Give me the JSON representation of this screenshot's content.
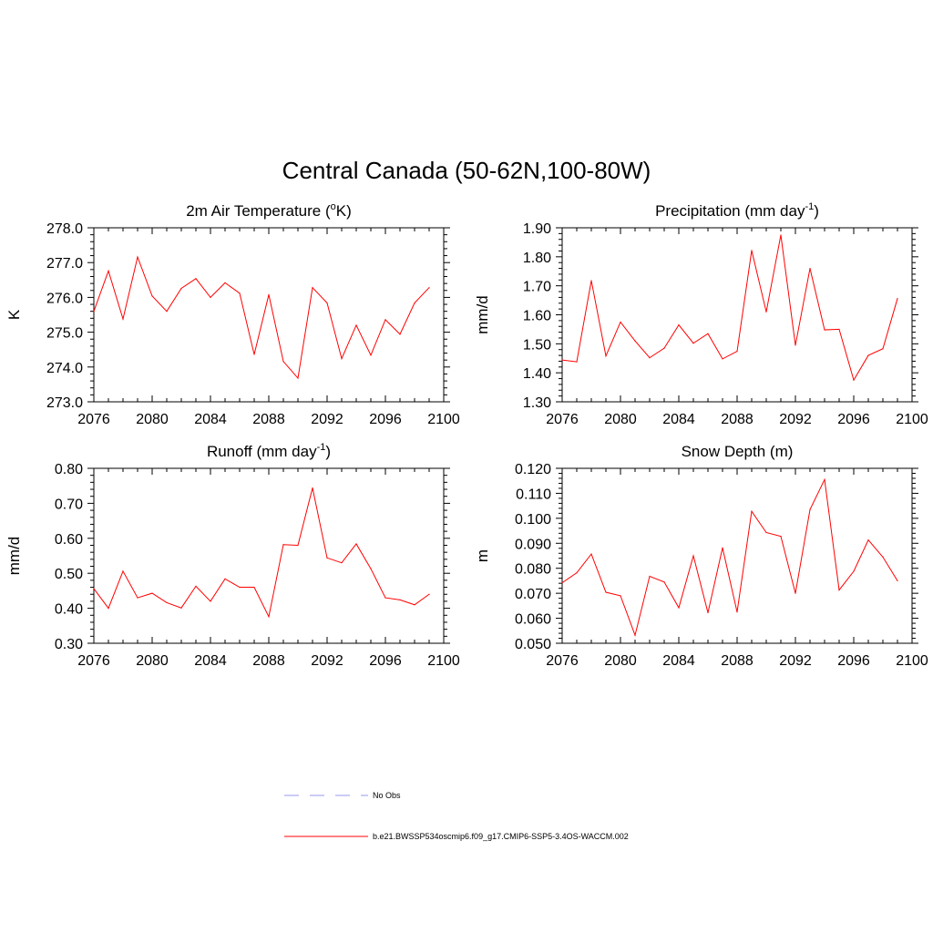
{
  "figure": {
    "title": "Central Canada (50-62N,100-80W)"
  },
  "legend": {
    "entries": [
      {
        "label": "No Obs",
        "color": "#9999ee",
        "style": "dashed"
      },
      {
        "label": "b.e21.BWSSP534oscmip6.f09_g17.CMIP6-SSP5-3.4OS-WACCM.002",
        "color": "#ff0000",
        "style": "solid"
      }
    ]
  },
  "colors": {
    "series": "#ff0000",
    "obs": "#9999ee",
    "axis": "#000000"
  },
  "chart_data": [
    {
      "type": "line",
      "id": "temp",
      "title": "2m Air Temperature (",
      "title_sup": "o",
      "title_after": "K)",
      "ylabel": "K",
      "xlabel": "",
      "xlim": [
        2076,
        2100
      ],
      "ylim": [
        273.0,
        278.0
      ],
      "yticks": [
        273.0,
        274.0,
        275.0,
        276.0,
        277.0,
        278.0
      ],
      "ytick_labels": [
        "273.0",
        "274.0",
        "275.0",
        "276.0",
        "277.0",
        "278.0"
      ],
      "xticks": [
        2076,
        2080,
        2084,
        2088,
        2092,
        2096,
        2100
      ],
      "xtick_labels": [
        "2076",
        "2080",
        "2084",
        "2088",
        "2092",
        "2096",
        "2100"
      ],
      "x": [
        2076,
        2077,
        2078,
        2079,
        2080,
        2081,
        2082,
        2083,
        2084,
        2085,
        2086,
        2087,
        2088,
        2089,
        2090,
        2091,
        2092,
        2093,
        2094,
        2095,
        2096,
        2097,
        2098,
        2099
      ],
      "series": [
        {
          "name": "b.e21.BWSSP534oscmip6.f09_g17.CMIP6-SSP5-3.4OS-WACCM.002",
          "values": [
            275.6,
            276.76,
            275.38,
            277.16,
            276.04,
            275.6,
            276.26,
            276.54,
            276.0,
            276.42,
            276.12,
            274.36,
            276.08,
            274.16,
            273.68,
            276.28,
            275.84,
            274.24,
            275.2,
            274.34,
            275.36,
            274.94,
            275.84,
            276.28
          ]
        }
      ]
    },
    {
      "type": "line",
      "id": "precip",
      "title": "Precipitation (mm day",
      "title_sup": "-1",
      "title_after": ")",
      "ylabel": "mm/d",
      "xlabel": "",
      "xlim": [
        2076,
        2100
      ],
      "ylim": [
        1.3,
        1.9
      ],
      "yticks": [
        1.3,
        1.4,
        1.5,
        1.6,
        1.7,
        1.8,
        1.9
      ],
      "ytick_labels": [
        "1.30",
        "1.40",
        "1.50",
        "1.60",
        "1.70",
        "1.80",
        "1.90"
      ],
      "xticks": [
        2076,
        2080,
        2084,
        2088,
        2092,
        2096,
        2100
      ],
      "xtick_labels": [
        "2076",
        "2080",
        "2084",
        "2088",
        "2092",
        "2096",
        "2100"
      ],
      "x": [
        2076,
        2077,
        2078,
        2079,
        2080,
        2081,
        2082,
        2083,
        2084,
        2085,
        2086,
        2087,
        2088,
        2089,
        2090,
        2091,
        2092,
        2093,
        2094,
        2095,
        2096,
        2097,
        2098,
        2099
      ],
      "series": [
        {
          "name": "b.e21.BWSSP534oscmip6.f09_g17.CMIP6-SSP5-3.4OS-WACCM.002",
          "values": [
            1.444,
            1.438,
            1.718,
            1.458,
            1.575,
            1.51,
            1.452,
            1.485,
            1.565,
            1.502,
            1.535,
            1.448,
            1.474,
            1.822,
            1.61,
            1.875,
            1.495,
            1.76,
            1.548,
            1.55,
            1.375,
            1.46,
            1.483,
            1.656
          ]
        }
      ]
    },
    {
      "type": "line",
      "id": "runoff",
      "title": "Runoff (mm day",
      "title_sup": "-1",
      "title_after": ")",
      "ylabel": "mm/d",
      "xlabel": "",
      "xlim": [
        2076,
        2100
      ],
      "ylim": [
        0.3,
        0.8
      ],
      "yticks": [
        0.3,
        0.4,
        0.5,
        0.6,
        0.7,
        0.8
      ],
      "ytick_labels": [
        "0.30",
        "0.40",
        "0.50",
        "0.60",
        "0.70",
        "0.80"
      ],
      "xticks": [
        2076,
        2080,
        2084,
        2088,
        2092,
        2096,
        2100
      ],
      "xtick_labels": [
        "2076",
        "2080",
        "2084",
        "2088",
        "2092",
        "2096",
        "2100"
      ],
      "x": [
        2076,
        2077,
        2078,
        2079,
        2080,
        2081,
        2082,
        2083,
        2084,
        2085,
        2086,
        2087,
        2088,
        2089,
        2090,
        2091,
        2092,
        2093,
        2094,
        2095,
        2096,
        2097,
        2098,
        2099
      ],
      "series": [
        {
          "name": "b.e21.BWSSP534oscmip6.f09_g17.CMIP6-SSP5-3.4OS-WACCM.002",
          "values": [
            0.456,
            0.4,
            0.506,
            0.43,
            0.443,
            0.416,
            0.401,
            0.463,
            0.42,
            0.484,
            0.46,
            0.46,
            0.376,
            0.582,
            0.58,
            0.744,
            0.544,
            0.53,
            0.584,
            0.513,
            0.43,
            0.424,
            0.41,
            0.44
          ]
        }
      ]
    },
    {
      "type": "line",
      "id": "snow",
      "title": "Snow Depth (m)",
      "title_sup": "",
      "title_after": "",
      "ylabel": "m",
      "xlabel": "",
      "xlim": [
        2076,
        2100
      ],
      "ylim": [
        0.05,
        0.12
      ],
      "yticks": [
        0.05,
        0.06,
        0.07,
        0.08,
        0.09,
        0.1,
        0.11,
        0.12
      ],
      "ytick_labels": [
        "0.050",
        "0.060",
        "0.070",
        "0.080",
        "0.090",
        "0.100",
        "0.110",
        "0.120"
      ],
      "xticks": [
        2076,
        2080,
        2084,
        2088,
        2092,
        2096,
        2100
      ],
      "xtick_labels": [
        "2076",
        "2080",
        "2084",
        "2088",
        "2092",
        "2096",
        "2100"
      ],
      "x": [
        2076,
        2077,
        2078,
        2079,
        2080,
        2081,
        2082,
        2083,
        2084,
        2085,
        2086,
        2087,
        2088,
        2089,
        2090,
        2091,
        2092,
        2093,
        2094,
        2095,
        2096,
        2097,
        2098,
        2099
      ],
      "series": [
        {
          "name": "b.e21.BWSSP534oscmip6.f09_g17.CMIP6-SSP5-3.4OS-WACCM.002",
          "values": [
            0.0742,
            0.0782,
            0.0857,
            0.0704,
            0.069,
            0.0532,
            0.0768,
            0.0745,
            0.0642,
            0.085,
            0.0622,
            0.0882,
            0.0625,
            0.1028,
            0.0943,
            0.0928,
            0.07,
            0.1035,
            0.1155,
            0.0713,
            0.0788,
            0.0913,
            0.0845,
            0.075
          ]
        }
      ]
    }
  ]
}
